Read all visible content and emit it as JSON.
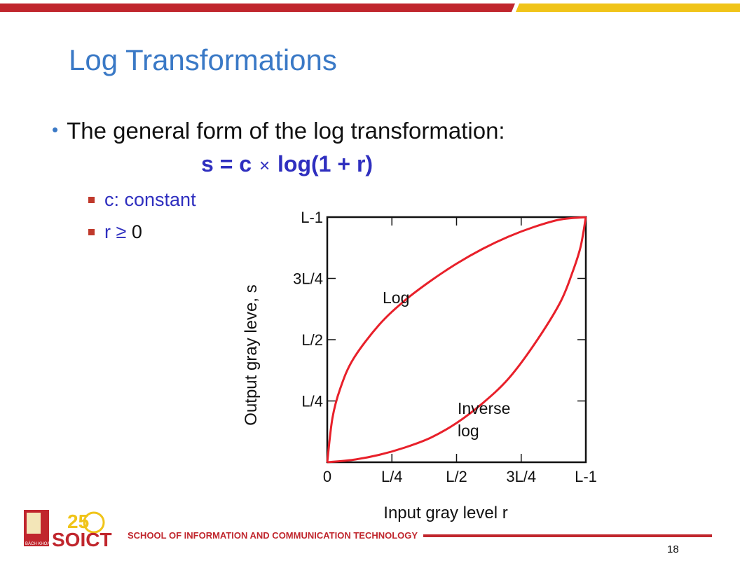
{
  "slide": {
    "title": "Log Transformations",
    "bullet": "The general form of the log transformation:",
    "formula_left": "s = c",
    "formula_times": "×",
    "formula_right": "log(1 + r)",
    "sub_items": [
      "c: constant",
      "r ≥ ",
      "0"
    ],
    "page_number": "18"
  },
  "footer": {
    "school": "SCHOOL OF INFORMATION AND COMMUNICATION TECHNOLOGY",
    "logo_text": "SOICT",
    "logo_number": "25",
    "logo_badge": "BÁCH KHOA"
  },
  "colors": {
    "title": "#3a79c6",
    "formula": "#2f2fbf",
    "accent_red": "#c0262d",
    "accent_gold": "#f0c419",
    "curve": "#e8202a"
  },
  "chart_data": {
    "type": "line",
    "xlabel": "Input gray level r",
    "ylabel": "Output gray leve, s",
    "x_ticks": [
      "0",
      "L/4",
      "L/2",
      "3L/4",
      "L-1"
    ],
    "y_ticks": [
      "L/4",
      "L/2",
      "3L/4",
      "L-1"
    ],
    "xlim": [
      0,
      1
    ],
    "ylim": [
      0,
      1
    ],
    "series": [
      {
        "name": "Log",
        "label": "Log",
        "x": [
          0,
          0.02,
          0.05,
          0.1,
          0.2,
          0.3,
          0.4,
          0.5,
          0.6,
          0.7,
          0.8,
          0.9,
          1.0
        ],
        "y": [
          0,
          0.18,
          0.3,
          0.42,
          0.56,
          0.66,
          0.74,
          0.81,
          0.87,
          0.92,
          0.96,
          0.99,
          1.0
        ]
      },
      {
        "name": "Inverse log",
        "label": "Inverse log",
        "x": [
          0,
          0.1,
          0.2,
          0.3,
          0.4,
          0.5,
          0.6,
          0.7,
          0.8,
          0.9,
          0.95,
          0.98,
          1.0
        ],
        "y": [
          0,
          0.01,
          0.03,
          0.06,
          0.1,
          0.16,
          0.24,
          0.34,
          0.48,
          0.65,
          0.78,
          0.88,
          1.0
        ]
      }
    ],
    "annotations": [
      "Log",
      "Inverse",
      "log"
    ]
  }
}
